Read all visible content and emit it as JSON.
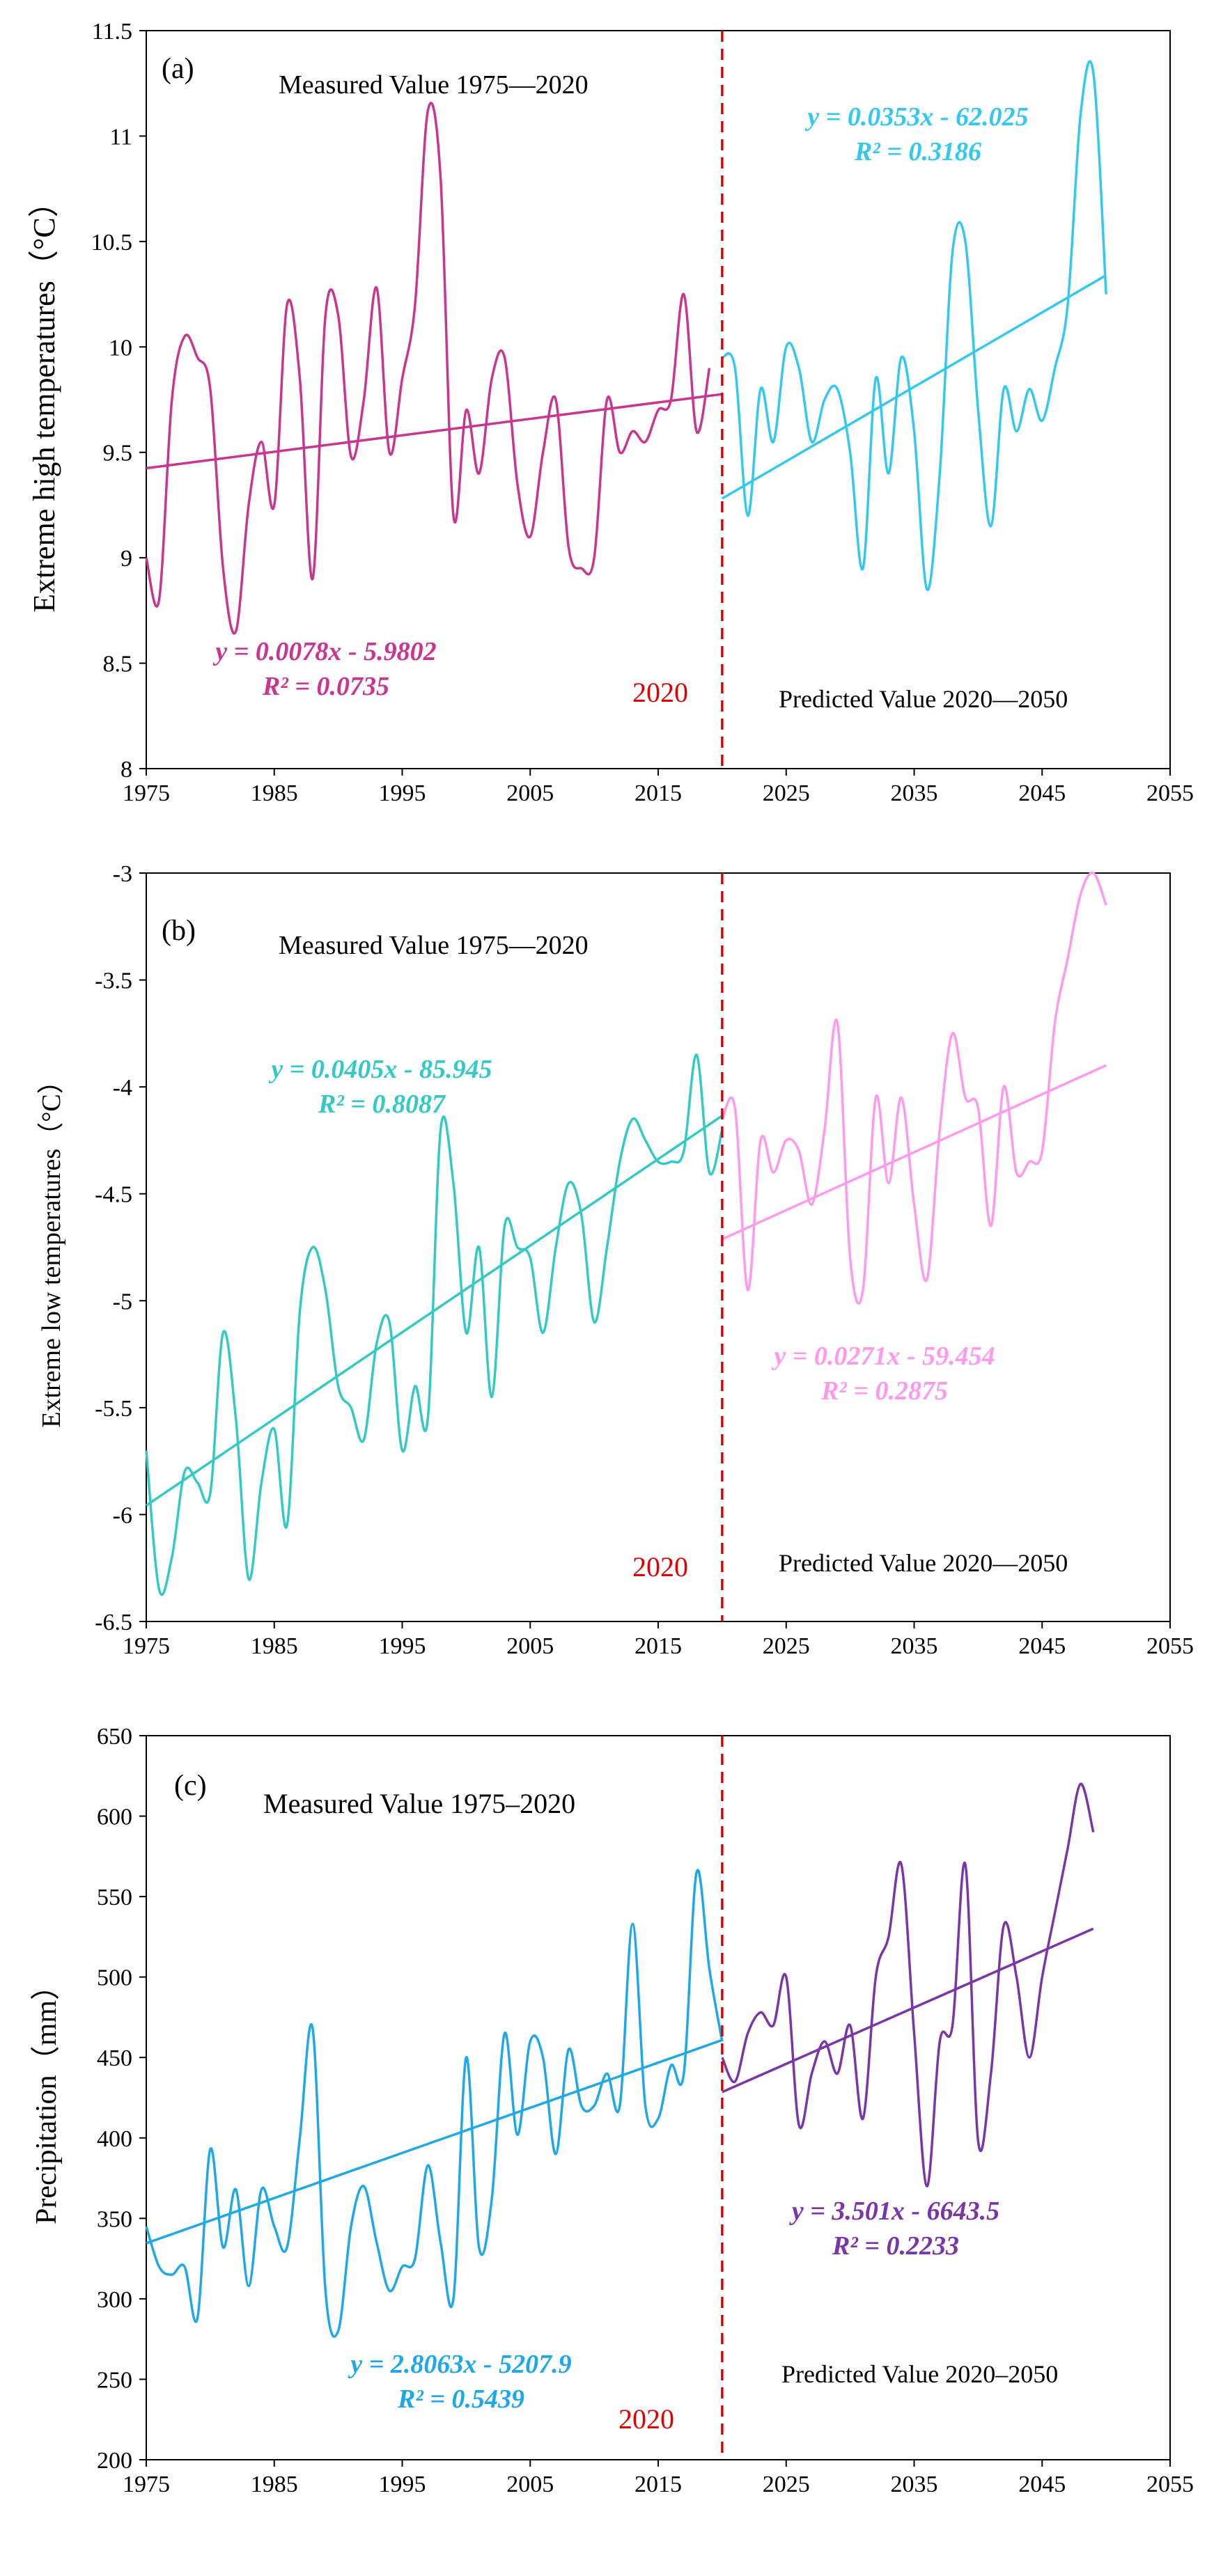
{
  "chart_data": [
    {
      "type": "line",
      "panel_label": "(a)",
      "ylabel": "Extreme high temperatures（°C）",
      "xlabel": "",
      "xlim": [
        1975,
        2055
      ],
      "ylim": [
        8,
        11.5
      ],
      "xticks": [
        1975,
        1985,
        1995,
        2005,
        2015,
        2025,
        2035,
        2045,
        2055
      ],
      "xtick_labels": [
        "1975",
        "1985",
        "1995",
        "2005",
        "2015",
        "2025",
        "2035",
        "2045",
        "2055"
      ],
      "yticks": [
        8,
        8.5,
        9,
        9.5,
        10,
        10.5,
        11,
        11.5
      ],
      "ytick_labels": [
        "8",
        "8.5",
        "9",
        "9.5",
        "10",
        "10.5",
        "11",
        "11.5"
      ],
      "divider_year": 2020,
      "divider_label": "2020",
      "measured_label": "Measured Value 1975—2020",
      "predicted_label": "Predicted Value 2020—2050",
      "series": [
        {
          "name": "Measured",
          "color": "#c8368f",
          "x": [
            1975,
            1976,
            1977,
            1978,
            1979,
            1980,
            1981,
            1982,
            1983,
            1984,
            1985,
            1986,
            1987,
            1988,
            1989,
            1990,
            1991,
            1992,
            1993,
            1994,
            1995,
            1996,
            1997,
            1998,
            1999,
            2000,
            2001,
            2002,
            2003,
            2004,
            2005,
            2006,
            2007,
            2008,
            2009,
            2010,
            2011,
            2012,
            2013,
            2014,
            2015,
            2016,
            2017,
            2018,
            2019
          ],
          "values": [
            9.0,
            8.8,
            9.75,
            10.05,
            9.95,
            9.8,
            8.95,
            8.65,
            9.25,
            9.55,
            9.25,
            10.2,
            9.85,
            8.9,
            10.15,
            10.15,
            9.48,
            9.75,
            10.28,
            9.5,
            9.85,
            10.2,
            11.12,
            10.8,
            9.2,
            9.7,
            9.4,
            9.85,
            9.95,
            9.35,
            9.1,
            9.5,
            9.75,
            9.05,
            8.95,
            9.0,
            9.75,
            9.5,
            9.6,
            9.55,
            9.7,
            9.75,
            10.25,
            9.6,
            9.9
          ],
          "trend": {
            "equation": "y = 0.0078x - 5.9802",
            "r2": "R² = 0.0735",
            "slope": 0.0078,
            "intercept": -5.9802,
            "x_range": [
              1975,
              2020
            ]
          }
        },
        {
          "name": "Predicted",
          "color": "#33c8ee",
          "x": [
            2020,
            2021,
            2022,
            2023,
            2024,
            2025,
            2026,
            2027,
            2028,
            2029,
            2030,
            2031,
            2032,
            2033,
            2034,
            2035,
            2036,
            2037,
            2038,
            2039,
            2040,
            2041,
            2042,
            2043,
            2044,
            2045,
            2046,
            2047,
            2048,
            2049,
            2050
          ],
          "values": [
            9.95,
            9.9,
            9.2,
            9.8,
            9.55,
            10.0,
            9.9,
            9.55,
            9.75,
            9.8,
            9.5,
            8.95,
            9.85,
            9.4,
            9.95,
            9.6,
            8.85,
            9.4,
            10.45,
            10.5,
            9.7,
            9.15,
            9.8,
            9.6,
            9.8,
            9.65,
            9.9,
            10.2,
            11.1,
            11.3,
            10.25
          ],
          "trend": {
            "equation": "y = 0.0353x - 62.025",
            "r2": "R² = 0.3186",
            "slope": 0.0353,
            "intercept": -62.025,
            "x_range": [
              2020,
              2050
            ]
          }
        }
      ]
    },
    {
      "type": "line",
      "panel_label": "(b)",
      "ylabel": "Extreme low temperatures（°C）",
      "xlabel": "",
      "xlim": [
        1975,
        2055
      ],
      "ylim": [
        -6.5,
        -3
      ],
      "xticks": [
        1975,
        1985,
        1995,
        2005,
        2015,
        2025,
        2035,
        2045,
        2055
      ],
      "xtick_labels": [
        "1975",
        "1985",
        "1995",
        "2005",
        "2015",
        "2025",
        "2035",
        "2045",
        "2055"
      ],
      "yticks": [
        -6.5,
        -6,
        -5.5,
        -5,
        -4.5,
        -4,
        -3.5,
        -3
      ],
      "ytick_labels": [
        "-6.5",
        "-6",
        "-5.5",
        "-5",
        "-4.5",
        "-4",
        "-3.5",
        "-3"
      ],
      "divider_year": 2020,
      "divider_label": "2020",
      "measured_label": "Measured Value 1975—2020",
      "predicted_label": "Predicted Value 2020—2050",
      "series": [
        {
          "name": "Measured",
          "color": "#33c9c4",
          "x": [
            1975,
            1976,
            1977,
            1978,
            1979,
            1980,
            1981,
            1982,
            1983,
            1984,
            1985,
            1986,
            1987,
            1988,
            1989,
            1990,
            1991,
            1992,
            1993,
            1994,
            1995,
            1996,
            1997,
            1998,
            1999,
            2000,
            2001,
            2002,
            2003,
            2004,
            2005,
            2006,
            2007,
            2008,
            2009,
            2010,
            2011,
            2012,
            2013,
            2014,
            2015,
            2016,
            2017,
            2018,
            2019,
            2020
          ],
          "values": [
            -5.7,
            -6.35,
            -6.2,
            -5.8,
            -5.85,
            -5.9,
            -5.15,
            -5.55,
            -6.3,
            -5.85,
            -5.6,
            -6.05,
            -5.05,
            -4.75,
            -4.95,
            -5.4,
            -5.5,
            -5.65,
            -5.2,
            -5.1,
            -5.7,
            -5.4,
            -5.55,
            -4.2,
            -4.45,
            -5.15,
            -4.75,
            -5.45,
            -4.65,
            -4.75,
            -4.8,
            -5.15,
            -4.75,
            -4.45,
            -4.6,
            -5.1,
            -4.75,
            -4.35,
            -4.15,
            -4.25,
            -4.35,
            -4.35,
            -4.3,
            -3.85,
            -4.4,
            -4.2
          ],
          "trend": {
            "equation": "y = 0.0405x - 85.945",
            "r2": "R² = 0.8087",
            "slope": 0.0405,
            "intercept": -85.945,
            "x_range": [
              1975,
              2020
            ]
          }
        },
        {
          "name": "Predicted",
          "color": "#ff99ee",
          "x": [
            2020,
            2021,
            2022,
            2023,
            2024,
            2025,
            2026,
            2027,
            2028,
            2029,
            2030,
            2031,
            2032,
            2033,
            2034,
            2035,
            2036,
            2037,
            2038,
            2039,
            2040,
            2041,
            2042,
            2043,
            2044,
            2045,
            2046,
            2047,
            2048,
            2049,
            2050
          ],
          "values": [
            -4.15,
            -4.1,
            -4.95,
            -4.25,
            -4.4,
            -4.25,
            -4.3,
            -4.55,
            -4.2,
            -3.7,
            -4.8,
            -4.95,
            -4.05,
            -4.45,
            -4.05,
            -4.55,
            -4.9,
            -4.2,
            -3.75,
            -4.05,
            -4.1,
            -4.65,
            -4.0,
            -4.4,
            -4.35,
            -4.3,
            -3.7,
            -3.4,
            -3.1,
            -3.0,
            -3.15
          ],
          "trend": {
            "equation": "y = 0.0271x - 59.454",
            "r2": "R² = 0.2875",
            "slope": 0.0271,
            "intercept": -59.454,
            "x_range": [
              2020,
              2050
            ]
          }
        }
      ]
    },
    {
      "type": "line",
      "panel_label": "(c)",
      "ylabel": "Precipitation（mm）",
      "xlabel": "",
      "xlim": [
        1975,
        2055
      ],
      "ylim": [
        200,
        650
      ],
      "xticks": [
        1975,
        1985,
        1995,
        2005,
        2015,
        2025,
        2035,
        2045,
        2055
      ],
      "xtick_labels": [
        "1975",
        "1985",
        "1995",
        "2005",
        "2015",
        "2025",
        "2035",
        "2045",
        "2055"
      ],
      "yticks": [
        200,
        250,
        300,
        350,
        400,
        450,
        500,
        550,
        600,
        650
      ],
      "ytick_labels": [
        "200",
        "250",
        "300",
        "350",
        "400",
        "450",
        "500",
        "550",
        "600",
        "650"
      ],
      "divider_year": 2020,
      "divider_label": "2020",
      "measured_label": "Measured Value 1975–2020",
      "predicted_label": "Predicted Value 2020–2050",
      "series": [
        {
          "name": "Measured",
          "color": "#1fa8e8",
          "x": [
            1975,
            1976,
            1977,
            1978,
            1979,
            1980,
            1981,
            1982,
            1983,
            1984,
            1985,
            1986,
            1987,
            1988,
            1989,
            1990,
            1991,
            1992,
            1993,
            1994,
            1995,
            1996,
            1997,
            1998,
            1999,
            2000,
            2001,
            2002,
            2003,
            2004,
            2005,
            2006,
            2007,
            2008,
            2009,
            2010,
            2011,
            2012,
            2013,
            2014,
            2015,
            2016,
            2017,
            2018,
            2019,
            2020
          ],
          "values": [
            345,
            320,
            315,
            320,
            288,
            393,
            332,
            368,
            308,
            368,
            345,
            332,
            400,
            468,
            305,
            280,
            345,
            370,
            335,
            305,
            320,
            325,
            383,
            335,
            300,
            450,
            332,
            362,
            465,
            402,
            460,
            450,
            390,
            455,
            420,
            420,
            440,
            420,
            533,
            420,
            412,
            445,
            440,
            565,
            505,
            460
          ],
          "trend": {
            "equation": "y = 2.8063x - 5207.9",
            "r2": "R² = 0.5439",
            "slope": 2.8063,
            "intercept": -5207.9,
            "x_range": [
              1975,
              2020
            ]
          }
        },
        {
          "name": "Predicted",
          "color": "#7a35a8",
          "x": [
            2020,
            2021,
            2022,
            2023,
            2024,
            2025,
            2026,
            2027,
            2028,
            2029,
            2030,
            2031,
            2032,
            2033,
            2034,
            2035,
            2036,
            2037,
            2038,
            2039,
            2040,
            2041,
            2042,
            2043,
            2044,
            2045,
            2046,
            2047,
            2048,
            2049
          ],
          "values": [
            450,
            435,
            465,
            478,
            470,
            500,
            408,
            440,
            460,
            440,
            470,
            412,
            500,
            525,
            570,
            465,
            370,
            460,
            470,
            570,
            398,
            440,
            532,
            500,
            450,
            500,
            540,
            580,
            620,
            590
          ],
          "trend": {
            "equation": "y = 3.501x - 6643.5",
            "r2": "R² = 0.2233",
            "slope": 3.501,
            "intercept": -6643.5,
            "x_range": [
              2020,
              2049
            ]
          }
        }
      ]
    }
  ]
}
